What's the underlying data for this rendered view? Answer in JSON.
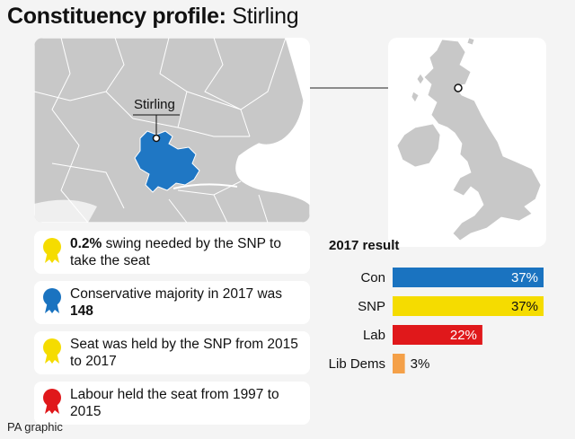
{
  "header": {
    "title_bold": "Constituency profile:",
    "title_name": "Stirling"
  },
  "map": {
    "label": "Stirling",
    "constituency_color": "#1f77c4"
  },
  "facts": [
    {
      "bold": "0.2%",
      "text": " swing needed by the SNP to take the seat",
      "color": "#f5dc00"
    },
    {
      "bold": "",
      "text": "Conservative majority in 2017 was ",
      "bold_after": "148",
      "color": "#1a73c0"
    },
    {
      "bold": "",
      "text": "Seat was held by the SNP from 2015 to 2017",
      "color": "#f5dc00"
    },
    {
      "bold": "",
      "text": "Labour held the seat from 1997 to 2015",
      "color": "#e0181b"
    }
  ],
  "chart_data": {
    "type": "bar",
    "title": "2017 result",
    "categories": [
      "Con",
      "SNP",
      "Lab",
      "Lib Dems"
    ],
    "values": [
      37,
      37,
      22,
      3
    ],
    "value_labels": [
      "37%",
      "37%",
      "22%",
      "3%"
    ],
    "colors": [
      "#1a73c0",
      "#f5dc00",
      "#e0181b",
      "#f4a048"
    ],
    "xlim": [
      0,
      37
    ]
  },
  "footer": {
    "source": "PA graphic"
  }
}
